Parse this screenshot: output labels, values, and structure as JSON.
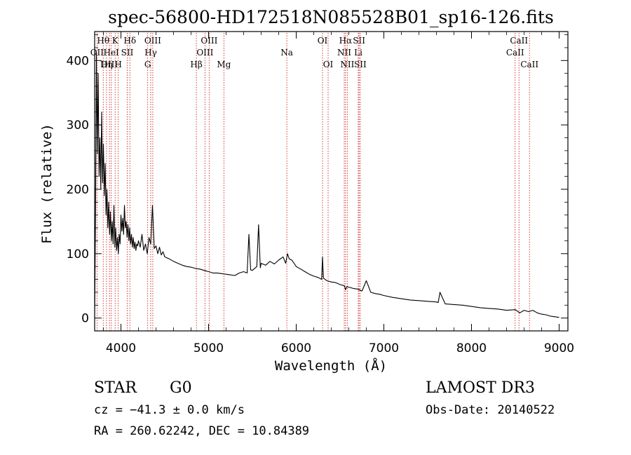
{
  "chart_data": {
    "type": "line",
    "title": "spec-56800-HD172518N085528B01_sp16-126.fits",
    "xlabel": "Wavelength (Å)",
    "ylabel": "Flux (relative)",
    "xlim": [
      3700,
      9100
    ],
    "ylim": [
      -20,
      445
    ],
    "xticks": [
      4000,
      5000,
      6000,
      7000,
      8000,
      9000
    ],
    "yticks": [
      0,
      100,
      200,
      300,
      400
    ],
    "xtick_labels": [
      "4000",
      "5000",
      "6000",
      "7000",
      "8000",
      "9000"
    ],
    "ytick_labels": [
      "0",
      "100",
      "200",
      "300",
      "400"
    ],
    "series": [
      {
        "name": "spectrum",
        "x": [
          3700,
          3710,
          3720,
          3730,
          3740,
          3750,
          3760,
          3770,
          3780,
          3790,
          3800,
          3810,
          3820,
          3830,
          3840,
          3850,
          3860,
          3870,
          3880,
          3890,
          3900,
          3910,
          3920,
          3930,
          3940,
          3950,
          3960,
          3970,
          3980,
          3990,
          4000,
          4010,
          4020,
          4030,
          4040,
          4050,
          4060,
          4070,
          4080,
          4090,
          4100,
          4110,
          4120,
          4130,
          4140,
          4150,
          4160,
          4170,
          4180,
          4190,
          4200,
          4220,
          4240,
          4260,
          4280,
          4300,
          4320,
          4340,
          4360,
          4380,
          4400,
          4420,
          4440,
          4460,
          4480,
          4500,
          4550,
          4600,
          4650,
          4700,
          4750,
          4800,
          4850,
          4900,
          4950,
          5000,
          5050,
          5100,
          5150,
          5200,
          5250,
          5300,
          5350,
          5400,
          5440,
          5460,
          5480,
          5500,
          5550,
          5570,
          5590,
          5600,
          5650,
          5700,
          5750,
          5800,
          5850,
          5880,
          5900,
          5920,
          5950,
          6000,
          6050,
          6100,
          6150,
          6200,
          6250,
          6290,
          6300,
          6310,
          6350,
          6400,
          6450,
          6500,
          6550,
          6562,
          6580,
          6600,
          6650,
          6700,
          6750,
          6800,
          6850,
          6900,
          6950,
          7000,
          7100,
          7200,
          7300,
          7400,
          7500,
          7600,
          7620,
          7640,
          7700,
          7800,
          7900,
          8000,
          8100,
          8200,
          8300,
          8400,
          8500,
          8550,
          8600,
          8650,
          8700,
          8750,
          8800,
          8850,
          8900,
          8950,
          9000
        ],
        "y": [
          0,
          170,
          410,
          255,
          380,
          220,
          280,
          200,
          320,
          210,
          270,
          190,
          240,
          160,
          200,
          140,
          180,
          130,
          165,
          120,
          150,
          115,
          175,
          110,
          140,
          105,
          125,
          100,
          130,
          115,
          160,
          135,
          155,
          130,
          175,
          140,
          150,
          125,
          145,
          120,
          140,
          115,
          130,
          110,
          125,
          108,
          118,
          105,
          115,
          112,
          120,
          110,
          130,
          105,
          115,
          100,
          125,
          115,
          175,
          108,
          112,
          100,
          110,
          98,
          103,
          95,
          92,
          88,
          85,
          82,
          80,
          79,
          77,
          76,
          74,
          72,
          70,
          70,
          69,
          68,
          67,
          66,
          70,
          72,
          70,
          130,
          75,
          74,
          80,
          145,
          78,
          85,
          82,
          88,
          84,
          90,
          95,
          85,
          100,
          92,
          90,
          80,
          76,
          72,
          68,
          65,
          63,
          60,
          95,
          62,
          58,
          56,
          55,
          52,
          50,
          44,
          49,
          48,
          46,
          45,
          42,
          58,
          40,
          38,
          37,
          35,
          32,
          30,
          28,
          27,
          26,
          25,
          24,
          40,
          22,
          21,
          20,
          18,
          16,
          15,
          14,
          12,
          13,
          8,
          12,
          10,
          12,
          8,
          6,
          5,
          3,
          2,
          1
        ]
      }
    ],
    "lines": [
      {
        "label": "Hθ",
        "wave": 3798,
        "row": 0
      },
      {
        "label": "K",
        "wave": 3934,
        "row": 0
      },
      {
        "label": "Hδ",
        "wave": 4102,
        "row": 0
      },
      {
        "label": "OIII",
        "wave": 4363,
        "row": 0
      },
      {
        "label": "OIII",
        "wave": 5007,
        "row": 0
      },
      {
        "label": "OI",
        "wave": 6300,
        "row": 0
      },
      {
        "label": "Hα",
        "wave": 6563,
        "row": 0
      },
      {
        "label": "SII",
        "wave": 6717,
        "row": 0
      },
      {
        "label": "CaII",
        "wave": 8542,
        "row": 0
      },
      {
        "label": "OII",
        "wave": 3727,
        "row": 1
      },
      {
        "label": "HeI",
        "wave": 3889,
        "row": 1
      },
      {
        "label": "SII",
        "wave": 4072,
        "row": 1
      },
      {
        "label": "Hγ",
        "wave": 4340,
        "row": 1
      },
      {
        "label": "OIII",
        "wave": 4959,
        "row": 1
      },
      {
        "label": "Na",
        "wave": 5893,
        "row": 1
      },
      {
        "label": "NII",
        "wave": 6548,
        "row": 1
      },
      {
        "label": "Li",
        "wave": 6708,
        "row": 1
      },
      {
        "label": "CaII",
        "wave": 8498,
        "row": 1
      },
      {
        "label": "OIII",
        "wave": 3869,
        "row": 2
      },
      {
        "label": "Hη",
        "wave": 3835,
        "row": 2
      },
      {
        "label": "H",
        "wave": 3969,
        "row": 2
      },
      {
        "label": "G",
        "wave": 4305,
        "row": 2
      },
      {
        "label": "Hβ",
        "wave": 4861,
        "row": 2
      },
      {
        "label": "Mg",
        "wave": 5175,
        "row": 2
      },
      {
        "label": "OI",
        "wave": 6364,
        "row": 2
      },
      {
        "label": "NII",
        "wave": 6583,
        "row": 2
      },
      {
        "label": "SII",
        "wave": 6731,
        "row": 2
      },
      {
        "label": "CaII",
        "wave": 8662,
        "row": 2
      }
    ],
    "line_color": "#cc2222",
    "data_color": "#000000"
  },
  "info": {
    "object_class": "STAR",
    "subclass": "G0",
    "survey": "LAMOST DR3",
    "cz": "cz = −41.3 ± 0.0 km/s",
    "obs_date": "Obs-Date: 20140522",
    "coords": "RA = 260.62242, DEC =  10.84389"
  }
}
